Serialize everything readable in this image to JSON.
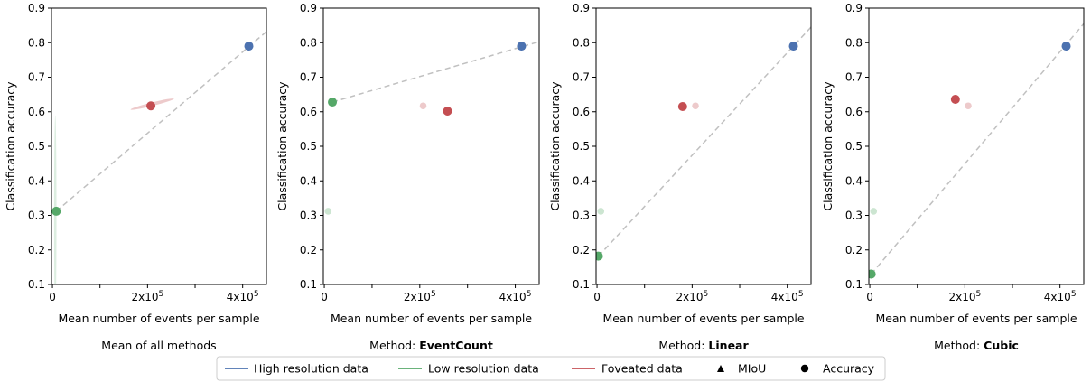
{
  "chart_data": [
    {
      "type": "scatter",
      "title_prefix": "",
      "title_bold": "",
      "title": "Mean of all methods",
      "xlabel": "Mean number of events per sample",
      "ylabel": "Classification accuracy",
      "xlim": [
        -2000,
        450000
      ],
      "ylim": [
        0.1,
        0.9
      ],
      "xticks": [
        0,
        100000,
        200000,
        300000,
        400000
      ],
      "xticklabels": [
        "0",
        "",
        "2x10^5",
        "",
        "4x10^5"
      ],
      "yticks": [
        0.1,
        0.2,
        0.3,
        0.4,
        0.5,
        0.6,
        0.7,
        0.8,
        0.9
      ],
      "points": [
        {
          "series": "High resolution data",
          "color": "#4c72b0",
          "x": 413000,
          "y": 0.79,
          "alpha": 1
        },
        {
          "series": "Low resolution data",
          "color": "#55a868",
          "x": 8000,
          "y": 0.312,
          "alpha": 1
        },
        {
          "series": "Foveated data",
          "color": "#c44e52",
          "x": 207000,
          "y": 0.617,
          "alpha": 1
        }
      ],
      "trend": [
        [
          8000,
          0.312
        ],
        [
          450000,
          0.832
        ]
      ],
      "ellipses": [
        {
          "color": "#c44e52",
          "cx": 210000,
          "cy": 0.622,
          "rx": 47000,
          "ry": 0.005,
          "angle": 14,
          "alpha": 0.3
        },
        {
          "color": "#55a868",
          "cx": 6000,
          "cy": 0.3,
          "rx": 2500,
          "ry": 0.29,
          "angle": 0,
          "alpha": 0.2
        }
      ]
    },
    {
      "type": "scatter",
      "title_prefix": "Method: ",
      "title_bold": "EventCount",
      "title": "",
      "xlabel": "Mean number of events per sample",
      "ylabel": "Classification accuracy",
      "xlim": [
        -2000,
        450000
      ],
      "ylim": [
        0.1,
        0.9
      ],
      "xticks": [
        0,
        100000,
        200000,
        300000,
        400000
      ],
      "xticklabels": [
        "0",
        "",
        "2x10^5",
        "",
        "4x10^5"
      ],
      "yticks": [
        0.1,
        0.2,
        0.3,
        0.4,
        0.5,
        0.6,
        0.7,
        0.8,
        0.9
      ],
      "points": [
        {
          "series": "High resolution data",
          "color": "#4c72b0",
          "x": 413000,
          "y": 0.79,
          "alpha": 1
        },
        {
          "series": "Low resolution data",
          "color": "#55a868",
          "x": 17000,
          "y": 0.628,
          "alpha": 1
        },
        {
          "series": "Foveated data",
          "color": "#c44e52",
          "x": 258000,
          "y": 0.602,
          "alpha": 1
        },
        {
          "series": "Low resolution data",
          "color": "#55a868",
          "x": 8000,
          "y": 0.312,
          "alpha": 0.3
        },
        {
          "series": "Foveated data",
          "color": "#c44e52",
          "x": 207000,
          "y": 0.617,
          "alpha": 0.3
        }
      ],
      "trend": [
        [
          17000,
          0.628
        ],
        [
          450000,
          0.803
        ]
      ],
      "ellipses": []
    },
    {
      "type": "scatter",
      "title_prefix": "Method: ",
      "title_bold": "Linear",
      "title": "",
      "xlabel": "Mean number of events per sample",
      "ylabel": "Classification accuracy",
      "xlim": [
        -2000,
        450000
      ],
      "ylim": [
        0.1,
        0.9
      ],
      "xticks": [
        0,
        100000,
        200000,
        300000,
        400000
      ],
      "xticklabels": [
        "0",
        "",
        "2x10^5",
        "",
        "4x10^5"
      ],
      "yticks": [
        0.1,
        0.2,
        0.3,
        0.4,
        0.5,
        0.6,
        0.7,
        0.8,
        0.9
      ],
      "points": [
        {
          "series": "High resolution data",
          "color": "#4c72b0",
          "x": 413000,
          "y": 0.79,
          "alpha": 1
        },
        {
          "series": "Low resolution data",
          "color": "#55a868",
          "x": 3000,
          "y": 0.182,
          "alpha": 1
        },
        {
          "series": "Foveated data",
          "color": "#c44e52",
          "x": 180000,
          "y": 0.615,
          "alpha": 1
        },
        {
          "series": "Low resolution data",
          "color": "#55a868",
          "x": 8000,
          "y": 0.312,
          "alpha": 0.3
        },
        {
          "series": "Foveated data",
          "color": "#c44e52",
          "x": 207000,
          "y": 0.617,
          "alpha": 0.3
        }
      ],
      "trend": [
        [
          3000,
          0.182
        ],
        [
          450000,
          0.845
        ]
      ],
      "ellipses": []
    },
    {
      "type": "scatter",
      "title_prefix": "Method: ",
      "title_bold": "Cubic",
      "title": "",
      "xlabel": "Mean number of events per sample",
      "ylabel": "Classification accuracy",
      "xlim": [
        -2000,
        450000
      ],
      "ylim": [
        0.1,
        0.9
      ],
      "xticks": [
        0,
        100000,
        200000,
        300000,
        400000
      ],
      "xticklabels": [
        "0",
        "",
        "2x10^5",
        "",
        "4x10^5"
      ],
      "yticks": [
        0.1,
        0.2,
        0.3,
        0.4,
        0.5,
        0.6,
        0.7,
        0.8,
        0.9
      ],
      "points": [
        {
          "series": "High resolution data",
          "color": "#4c72b0",
          "x": 413000,
          "y": 0.79,
          "alpha": 1
        },
        {
          "series": "Low resolution data",
          "color": "#55a868",
          "x": 3000,
          "y": 0.13,
          "alpha": 1
        },
        {
          "series": "Foveated data",
          "color": "#c44e52",
          "x": 180000,
          "y": 0.636,
          "alpha": 1
        },
        {
          "series": "Low resolution data",
          "color": "#55a868",
          "x": 8000,
          "y": 0.312,
          "alpha": 0.3
        },
        {
          "series": "Foveated data",
          "color": "#c44e52",
          "x": 207000,
          "y": 0.617,
          "alpha": 0.3
        }
      ],
      "trend": [
        [
          3000,
          0.13
        ],
        [
          450000,
          0.855
        ]
      ],
      "ellipses": []
    }
  ],
  "legend": {
    "placement": "bottom-center",
    "items": [
      {
        "label": "High resolution data",
        "kind": "line",
        "color": "#4c72b0"
      },
      {
        "label": "Low resolution data",
        "kind": "line",
        "color": "#55a868"
      },
      {
        "label": "Foveated data",
        "kind": "line",
        "color": "#c44e52"
      },
      {
        "label": "MIoU",
        "kind": "triangle",
        "color": "#000000"
      },
      {
        "label": "Accuracy",
        "kind": "circle",
        "color": "#000000"
      }
    ]
  },
  "colors": {
    "trend_line": "#c0c0c0",
    "axis": "#000000"
  }
}
